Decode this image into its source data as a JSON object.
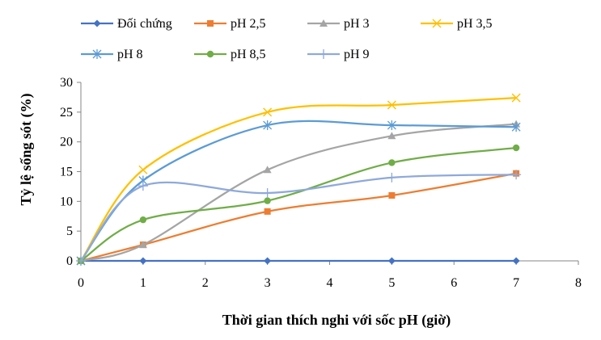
{
  "chart_data": {
    "type": "line",
    "title": "",
    "xlabel": "Thời gian thích nghi với sốc pH (giờ)",
    "ylabel": "Tỷ lệ sống sót (%)",
    "xlim": [
      0,
      8
    ],
    "ylim": [
      0,
      30
    ],
    "xticks": [
      "0",
      "1",
      "2",
      "3",
      "4",
      "5",
      "6",
      "7",
      "8"
    ],
    "yticks": [
      "0",
      "5",
      "10",
      "15",
      "20",
      "25",
      "30"
    ],
    "grid": false,
    "smooth": true,
    "legend_position": "top",
    "x": [
      0,
      1,
      3,
      5,
      7
    ],
    "series": [
      {
        "name": "Đối chứng",
        "color": "#4472C4",
        "marker": "diamond",
        "values": [
          0,
          0,
          0,
          0,
          0
        ]
      },
      {
        "name": "pH 2,5",
        "color": "#ED7D31",
        "marker": "square",
        "values": [
          0,
          2.7,
          8.3,
          11,
          14.7
        ]
      },
      {
        "name": "pH 3",
        "color": "#A5A5A5",
        "marker": "triangle",
        "values": [
          0,
          2.7,
          15.3,
          21,
          23
        ]
      },
      {
        "name": "pH 3,5",
        "color": "#FFC000",
        "marker": "x",
        "values": [
          0,
          15.3,
          25,
          26.2,
          27.4
        ]
      },
      {
        "name": "pH 8",
        "color": "#5B9BD5",
        "marker": "star",
        "values": [
          0,
          13.5,
          22.8,
          22.8,
          22.5
        ]
      },
      {
        "name": "pH 8,5",
        "color": "#70AD47",
        "marker": "circle",
        "values": [
          0,
          6.9,
          10.1,
          16.5,
          19
        ]
      },
      {
        "name": "pH 9",
        "color": "#8EA9DB",
        "marker": "plus",
        "values": [
          0,
          12.6,
          11.4,
          14,
          14.5
        ]
      }
    ]
  }
}
